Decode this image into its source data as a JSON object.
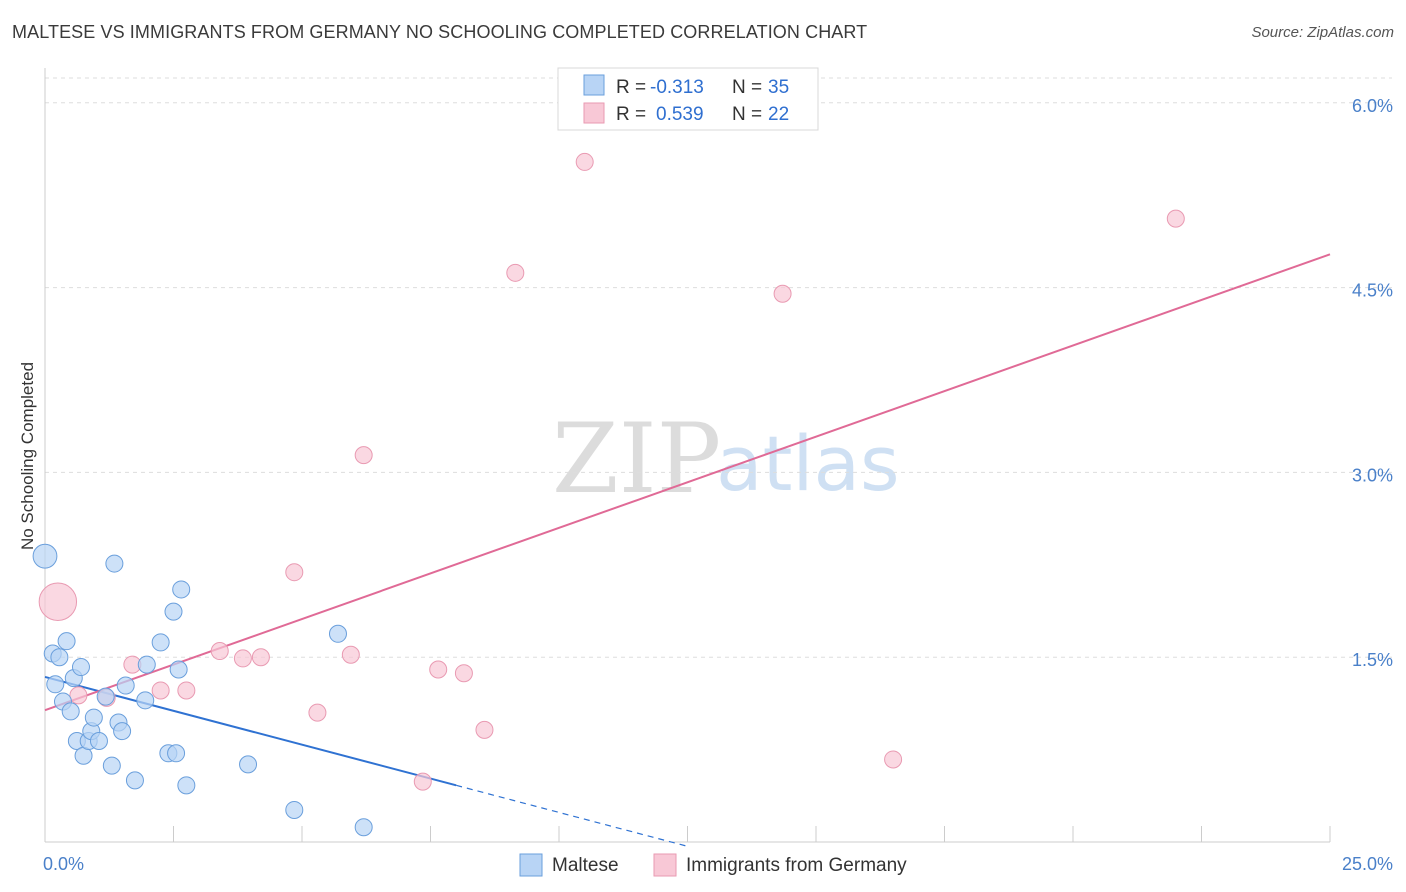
{
  "header": {
    "title": "MALTESE VS IMMIGRANTS FROM GERMANY NO SCHOOLING COMPLETED CORRELATION CHART",
    "source": "Source: ZipAtlas.com"
  },
  "watermark": {
    "zip": "ZIP",
    "atlas": "atlas"
  },
  "chart_data": {
    "type": "scatter",
    "title": "MALTESE VS IMMIGRANTS FROM GERMANY NO SCHOOLING COMPLETED CORRELATION CHART",
    "xlabel": "",
    "ylabel": "No Schooling Completed",
    "xlim": [
      0,
      25
    ],
    "ylim": [
      0,
      6.25
    ],
    "x_tick_labels": [
      "0.0%",
      "25.0%"
    ],
    "y_ticks": [
      1.5,
      3.0,
      4.5,
      6.0
    ],
    "y_tick_labels": [
      "1.5%",
      "3.0%",
      "4.5%",
      "6.0%"
    ],
    "grid": true,
    "legend_position": "top-center",
    "colors": {
      "maltese_fill": "#b8d4f5",
      "maltese_stroke": "#6a9fdc",
      "maltese_line": "#2f72d2",
      "germany_fill": "#f8c8d6",
      "germany_stroke": "#e99ab2",
      "germany_line": "#e06a96",
      "axis_text": "#4a80c9",
      "grid": "#dddddd"
    },
    "stats": [
      {
        "r_label": "R =",
        "r_value": "-0.313",
        "n_label": "N =",
        "n_value": "35"
      },
      {
        "r_label": "R =",
        "r_value": "0.539",
        "n_label": "N =",
        "n_value": "22"
      }
    ],
    "series": [
      {
        "name": "Maltese",
        "points": [
          {
            "x": 0.0,
            "y": 2.32,
            "size": 1.4
          },
          {
            "x": 0.15,
            "y": 1.53,
            "size": 1.0
          },
          {
            "x": 0.2,
            "y": 1.28,
            "size": 1.0
          },
          {
            "x": 0.28,
            "y": 1.5,
            "size": 1.0
          },
          {
            "x": 0.35,
            "y": 1.14,
            "size": 1.0
          },
          {
            "x": 0.42,
            "y": 1.63,
            "size": 1.0
          },
          {
            "x": 0.5,
            "y": 1.06,
            "size": 1.0
          },
          {
            "x": 0.56,
            "y": 1.33,
            "size": 1.0
          },
          {
            "x": 0.62,
            "y": 0.82,
            "size": 1.0
          },
          {
            "x": 0.7,
            "y": 1.42,
            "size": 1.0
          },
          {
            "x": 0.75,
            "y": 0.7,
            "size": 1.0
          },
          {
            "x": 0.85,
            "y": 0.82,
            "size": 1.0
          },
          {
            "x": 0.9,
            "y": 0.9,
            "size": 1.0
          },
          {
            "x": 0.95,
            "y": 1.01,
            "size": 1.0
          },
          {
            "x": 1.05,
            "y": 0.82,
            "size": 1.0
          },
          {
            "x": 1.18,
            "y": 1.18,
            "size": 1.0
          },
          {
            "x": 1.3,
            "y": 0.62,
            "size": 1.0
          },
          {
            "x": 1.35,
            "y": 2.26,
            "size": 1.0
          },
          {
            "x": 1.43,
            "y": 0.97,
            "size": 1.0
          },
          {
            "x": 1.5,
            "y": 0.9,
            "size": 1.0
          },
          {
            "x": 1.57,
            "y": 1.27,
            "size": 1.0
          },
          {
            "x": 1.75,
            "y": 0.5,
            "size": 1.0
          },
          {
            "x": 1.95,
            "y": 1.15,
            "size": 1.0
          },
          {
            "x": 1.98,
            "y": 1.44,
            "size": 1.0
          },
          {
            "x": 2.25,
            "y": 1.62,
            "size": 1.0
          },
          {
            "x": 2.4,
            "y": 0.72,
            "size": 1.0
          },
          {
            "x": 2.5,
            "y": 1.87,
            "size": 1.0
          },
          {
            "x": 2.55,
            "y": 0.72,
            "size": 1.0
          },
          {
            "x": 2.6,
            "y": 1.4,
            "size": 1.0
          },
          {
            "x": 2.65,
            "y": 2.05,
            "size": 1.0
          },
          {
            "x": 2.75,
            "y": 0.46,
            "size": 1.0
          },
          {
            "x": 3.95,
            "y": 0.63,
            "size": 1.0
          },
          {
            "x": 4.85,
            "y": 0.26,
            "size": 1.0
          },
          {
            "x": 5.7,
            "y": 1.69,
            "size": 1.0
          },
          {
            "x": 6.2,
            "y": 0.12,
            "size": 1.0
          }
        ],
        "trend": {
          "x0": 0.0,
          "y0": 1.34,
          "x1": 8.0,
          "y1": 0.46,
          "dash_to_x": 12.5
        }
      },
      {
        "name": "Immigrants from Germany",
        "points": [
          {
            "x": 0.25,
            "y": 1.95,
            "size": 2.2
          },
          {
            "x": 0.65,
            "y": 1.19,
            "size": 1.0
          },
          {
            "x": 1.2,
            "y": 1.17,
            "size": 1.0
          },
          {
            "x": 1.7,
            "y": 1.44,
            "size": 1.0
          },
          {
            "x": 2.25,
            "y": 1.23,
            "size": 1.0
          },
          {
            "x": 2.75,
            "y": 1.23,
            "size": 1.0
          },
          {
            "x": 3.4,
            "y": 1.55,
            "size": 1.0
          },
          {
            "x": 3.85,
            "y": 1.49,
            "size": 1.0
          },
          {
            "x": 4.2,
            "y": 1.5,
            "size": 1.0
          },
          {
            "x": 4.85,
            "y": 2.19,
            "size": 1.0
          },
          {
            "x": 5.3,
            "y": 1.05,
            "size": 1.0
          },
          {
            "x": 5.95,
            "y": 1.52,
            "size": 1.0
          },
          {
            "x": 6.2,
            "y": 3.14,
            "size": 1.0
          },
          {
            "x": 7.35,
            "y": 0.49,
            "size": 1.0
          },
          {
            "x": 7.65,
            "y": 1.4,
            "size": 1.0
          },
          {
            "x": 8.15,
            "y": 1.37,
            "size": 1.0
          },
          {
            "x": 8.55,
            "y": 0.91,
            "size": 1.0
          },
          {
            "x": 9.15,
            "y": 4.62,
            "size": 1.0
          },
          {
            "x": 10.5,
            "y": 5.52,
            "size": 1.0
          },
          {
            "x": 14.35,
            "y": 4.45,
            "size": 1.0
          },
          {
            "x": 16.5,
            "y": 0.67,
            "size": 1.0
          },
          {
            "x": 22.0,
            "y": 5.06,
            "size": 1.0
          }
        ],
        "trend": {
          "x0": 0.0,
          "y0": 1.07,
          "x1": 25.0,
          "y1": 4.77
        }
      }
    ]
  },
  "legend": {
    "items": [
      {
        "label": "Maltese"
      },
      {
        "label": "Immigrants from Germany"
      }
    ]
  }
}
